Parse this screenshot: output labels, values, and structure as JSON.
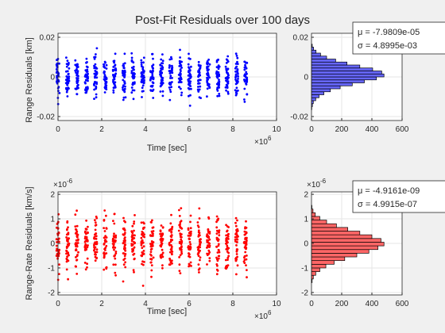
{
  "figure": {
    "title": "Post-Fit Residuals over 100 days",
    "background": "#f0f0f0"
  },
  "chart_data": [
    {
      "id": "range-residuals",
      "type": "scatter",
      "ylabel": "Range Residuals [km]",
      "xlabel": "Time [sec]",
      "x_exponent": "10^6",
      "xlim": [
        0,
        10
      ],
      "ylim": [
        -0.022,
        0.022
      ],
      "xticks": [
        "0",
        "2",
        "4",
        "6",
        "8",
        "10"
      ],
      "yticks": [
        {
          "v": -0.02,
          "label": "-0.02"
        },
        {
          "v": 0,
          "label": "0"
        },
        {
          "v": 0.02,
          "label": "0.02"
        }
      ],
      "color": "#0000ff",
      "pass_times": [
        0.0,
        0.44,
        0.86,
        1.3,
        1.72,
        2.16,
        2.58,
        3.02,
        3.44,
        3.88,
        4.3,
        4.74,
        5.16,
        5.6,
        6.02,
        6.46,
        6.88,
        7.32,
        7.74,
        8.18,
        8.58
      ],
      "spread_sigma": 0.0049,
      "max_abs": 0.019
    },
    {
      "id": "range-rate-residuals",
      "type": "scatter",
      "ylabel": "Range-Rate Residuals [km/s]",
      "xlabel": "Time [sec]",
      "x_exponent": "10^6",
      "y_exponent": "10^-6",
      "xlim": [
        0,
        10
      ],
      "ylim": [
        -2.1,
        2.1
      ],
      "xticks": [
        "0",
        "2",
        "4",
        "6",
        "8",
        "10"
      ],
      "yticks": [
        {
          "v": -2,
          "label": "-2"
        },
        {
          "v": -1,
          "label": "-1"
        },
        {
          "v": 0,
          "label": "0"
        },
        {
          "v": 1,
          "label": "1"
        },
        {
          "v": 2,
          "label": "2"
        }
      ],
      "color": "#ff0000",
      "pass_times": [
        0.0,
        0.44,
        0.86,
        1.3,
        1.72,
        2.16,
        2.58,
        3.02,
        3.44,
        3.88,
        4.3,
        4.74,
        5.16,
        5.6,
        6.02,
        6.46,
        6.88,
        7.32,
        7.74,
        8.18,
        8.58
      ],
      "spread_sigma": 0.5,
      "max_abs": 1.8
    },
    {
      "id": "range-histogram",
      "type": "bar",
      "orientation": "horizontal",
      "xlim": [
        0,
        600
      ],
      "xticks": [
        "0",
        "200",
        "400",
        "600"
      ],
      "ylim": [
        -0.022,
        0.022
      ],
      "yticks": [
        {
          "v": -0.02,
          "label": "-0.02"
        },
        {
          "v": 0,
          "label": "0"
        },
        {
          "v": 0.02,
          "label": "0.02"
        }
      ],
      "bin_edges": [
        -0.0165,
        -0.015,
        -0.0135,
        -0.012,
        -0.0105,
        -0.009,
        -0.0075,
        -0.006,
        -0.0045,
        -0.003,
        -0.0015,
        0.0,
        0.0015,
        0.003,
        0.0045,
        0.006,
        0.0075,
        0.009,
        0.0105,
        0.012,
        0.0135,
        0.015,
        0.0165
      ],
      "counts": [
        2,
        6,
        12,
        28,
        50,
        82,
        125,
        190,
        270,
        350,
        430,
        480,
        465,
        405,
        320,
        235,
        160,
        100,
        60,
        30,
        14,
        5
      ],
      "fill": "#6666ff",
      "stats": {
        "mu": "μ = -7.9809e-05",
        "sigma": "σ = 4.8995e-03"
      }
    },
    {
      "id": "range-rate-histogram",
      "type": "bar",
      "orientation": "horizontal",
      "y_exponent": "10^-6",
      "xlim": [
        0,
        600
      ],
      "xticks": [
        "0",
        "200",
        "400",
        "600"
      ],
      "ylim": [
        -2.1,
        2.1
      ],
      "yticks": [
        {
          "v": -2,
          "label": "-2"
        },
        {
          "v": -1,
          "label": "-1"
        },
        {
          "v": 0,
          "label": "0"
        },
        {
          "v": 1,
          "label": "1"
        },
        {
          "v": 2,
          "label": "2"
        }
      ],
      "bin_edges": [
        -1.6,
        -1.45,
        -1.3,
        -1.15,
        -1.0,
        -0.85,
        -0.7,
        -0.55,
        -0.4,
        -0.25,
        -0.1,
        0.05,
        0.2,
        0.35,
        0.5,
        0.65,
        0.8,
        0.95,
        1.1,
        1.25,
        1.4,
        1.55
      ],
      "counts": [
        4,
        12,
        28,
        55,
        95,
        150,
        220,
        300,
        380,
        440,
        480,
        460,
        400,
        320,
        240,
        165,
        100,
        55,
        25,
        10,
        3
      ],
      "fill": "#ff6666",
      "stats": {
        "mu": "μ = -4.9161e-09",
        "sigma": "σ = 4.9915e-07"
      }
    }
  ]
}
